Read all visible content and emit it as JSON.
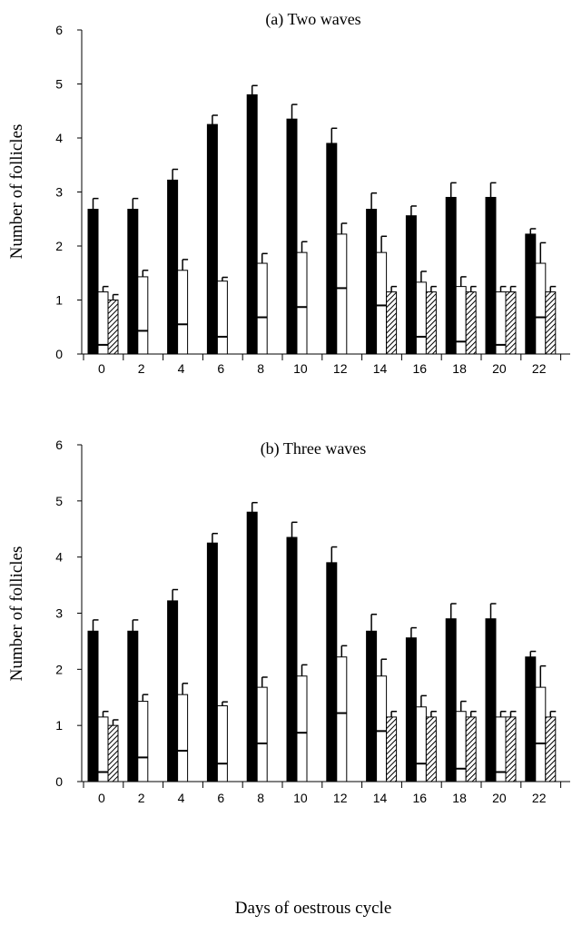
{
  "x_axis_title": "Days of oestrous cycle",
  "colors": {
    "solid": "#000000",
    "open": "#ffffff",
    "axis": "#000000"
  },
  "chart_data": [
    {
      "type": "bar",
      "title": "(a) Two waves",
      "ylabel": "Number of follicles",
      "ylim": [
        0,
        6
      ],
      "yticks": [
        0,
        1,
        2,
        3,
        4,
        5,
        6
      ],
      "grid": false,
      "categories": [
        "0",
        "2",
        "4",
        "6",
        "8",
        "10",
        "12",
        "14",
        "16",
        "18",
        "20",
        "22"
      ],
      "series": [
        {
          "style": "solid",
          "values": [
            2.68,
            2.68,
            3.22,
            4.25,
            4.8,
            4.35,
            3.9,
            2.68,
            2.56,
            2.9,
            2.9,
            2.22
          ],
          "errors": [
            0.2,
            0.2,
            0.2,
            0.17,
            0.17,
            0.27,
            0.28,
            0.3,
            0.18,
            0.27,
            0.27,
            0.1
          ]
        },
        {
          "style": "open",
          "values": [
            1.15,
            1.43,
            1.55,
            1.35,
            1.68,
            1.88,
            2.22,
            1.88,
            1.33,
            1.25,
            1.15,
            1.68
          ],
          "inner": [
            0.17,
            0.43,
            0.55,
            0.32,
            0.68,
            0.87,
            1.22,
            0.9,
            0.32,
            0.23,
            0.17,
            0.68
          ],
          "errors": [
            0.1,
            0.12,
            0.2,
            0.07,
            0.18,
            0.2,
            0.2,
            0.3,
            0.2,
            0.18,
            0.1,
            0.38
          ]
        },
        {
          "style": "hatched",
          "values": [
            1.0,
            0,
            0,
            0,
            0,
            0,
            0,
            1.15,
            1.15,
            1.15,
            1.15,
            1.15
          ],
          "errors": [
            0.1,
            0,
            0,
            0,
            0,
            0,
            0,
            0.1,
            0.1,
            0.1,
            0.1,
            0.1
          ]
        }
      ]
    },
    {
      "type": "bar",
      "title": "(b) Three waves",
      "ylabel": "Number of follicles",
      "ylim": [
        0,
        6
      ],
      "yticks": [
        0,
        1,
        2,
        3,
        4,
        5,
        6
      ],
      "grid": false,
      "categories": [
        "0",
        "2",
        "4",
        "6",
        "8",
        "10",
        "12",
        "14",
        "16",
        "18",
        "20",
        "22"
      ],
      "series": [
        {
          "style": "solid",
          "values": [
            2.68,
            2.68,
            3.22,
            4.25,
            4.8,
            4.35,
            3.9,
            2.68,
            2.56,
            2.9,
            2.9,
            2.22
          ],
          "errors": [
            0.2,
            0.2,
            0.2,
            0.17,
            0.17,
            0.27,
            0.28,
            0.3,
            0.18,
            0.27,
            0.27,
            0.1
          ]
        },
        {
          "style": "open",
          "values": [
            1.15,
            1.43,
            1.55,
            1.35,
            1.68,
            1.88,
            2.22,
            1.88,
            1.33,
            1.25,
            1.15,
            1.68
          ],
          "inner": [
            0.17,
            0.43,
            0.55,
            0.32,
            0.68,
            0.87,
            1.22,
            0.9,
            0.32,
            0.23,
            0.17,
            0.68
          ],
          "errors": [
            0.1,
            0.12,
            0.2,
            0.07,
            0.18,
            0.2,
            0.2,
            0.3,
            0.2,
            0.18,
            0.1,
            0.38
          ]
        },
        {
          "style": "hatched",
          "values": [
            1.0,
            0,
            0,
            0,
            0,
            0,
            0,
            1.15,
            1.15,
            1.15,
            1.15,
            1.15
          ],
          "errors": [
            0.1,
            0,
            0,
            0,
            0,
            0,
            0,
            0.1,
            0.1,
            0.1,
            0.1,
            0.1
          ]
        }
      ]
    }
  ]
}
